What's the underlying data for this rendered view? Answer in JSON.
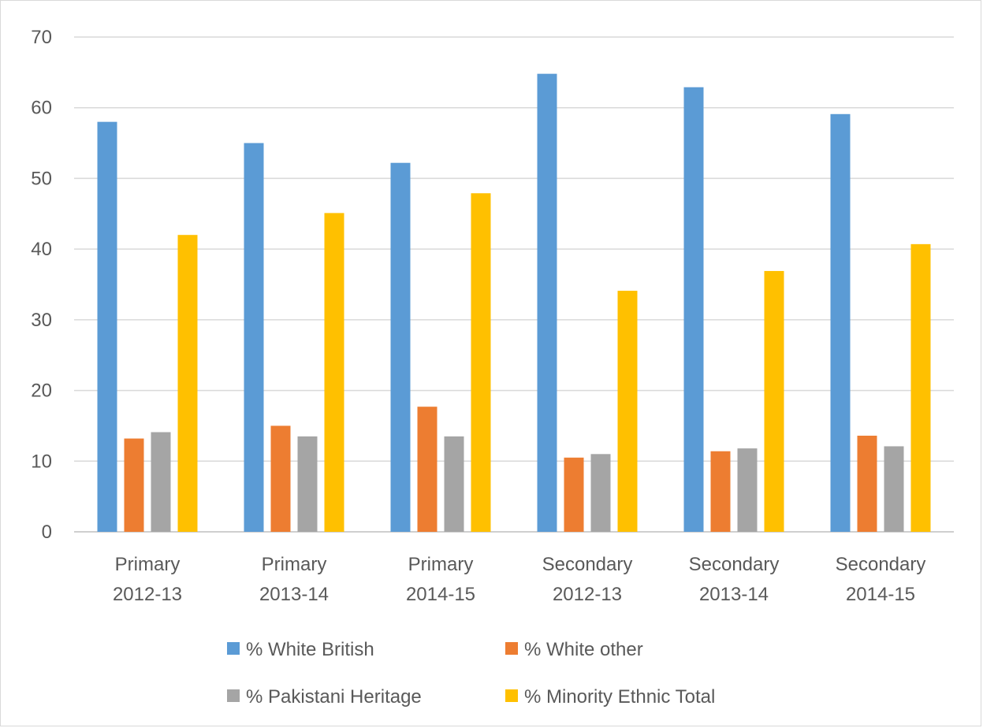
{
  "chart_data": {
    "type": "bar",
    "ylim": [
      0,
      70
    ],
    "yticks": [
      0,
      10,
      20,
      30,
      40,
      50,
      60,
      70
    ],
    "grid": true,
    "legend_position": "bottom",
    "categories": [
      [
        "Primary",
        "2012-13"
      ],
      [
        "Primary",
        "2013-14"
      ],
      [
        "Primary",
        "2014-15"
      ],
      [
        "Secondary",
        "2012-13"
      ],
      [
        "Secondary",
        "2013-14"
      ],
      [
        "Secondary",
        "2014-15"
      ]
    ],
    "series": [
      {
        "name": "% White British",
        "color": "#5b9bd5",
        "values": [
          58,
          55,
          52.2,
          64.8,
          62.9,
          59.1
        ]
      },
      {
        "name": "% White other",
        "color": "#ed7d31",
        "values": [
          13.2,
          15,
          17.7,
          10.5,
          11.4,
          13.6
        ]
      },
      {
        "name": "% Pakistani Heritage",
        "color": "#a5a5a5",
        "values": [
          14.1,
          13.5,
          13.5,
          11,
          11.8,
          12.1
        ]
      },
      {
        "name": "% Minority Ethnic Total",
        "color": "#ffc000",
        "values": [
          42,
          45.1,
          47.9,
          34.1,
          36.9,
          40.7
        ]
      }
    ]
  }
}
